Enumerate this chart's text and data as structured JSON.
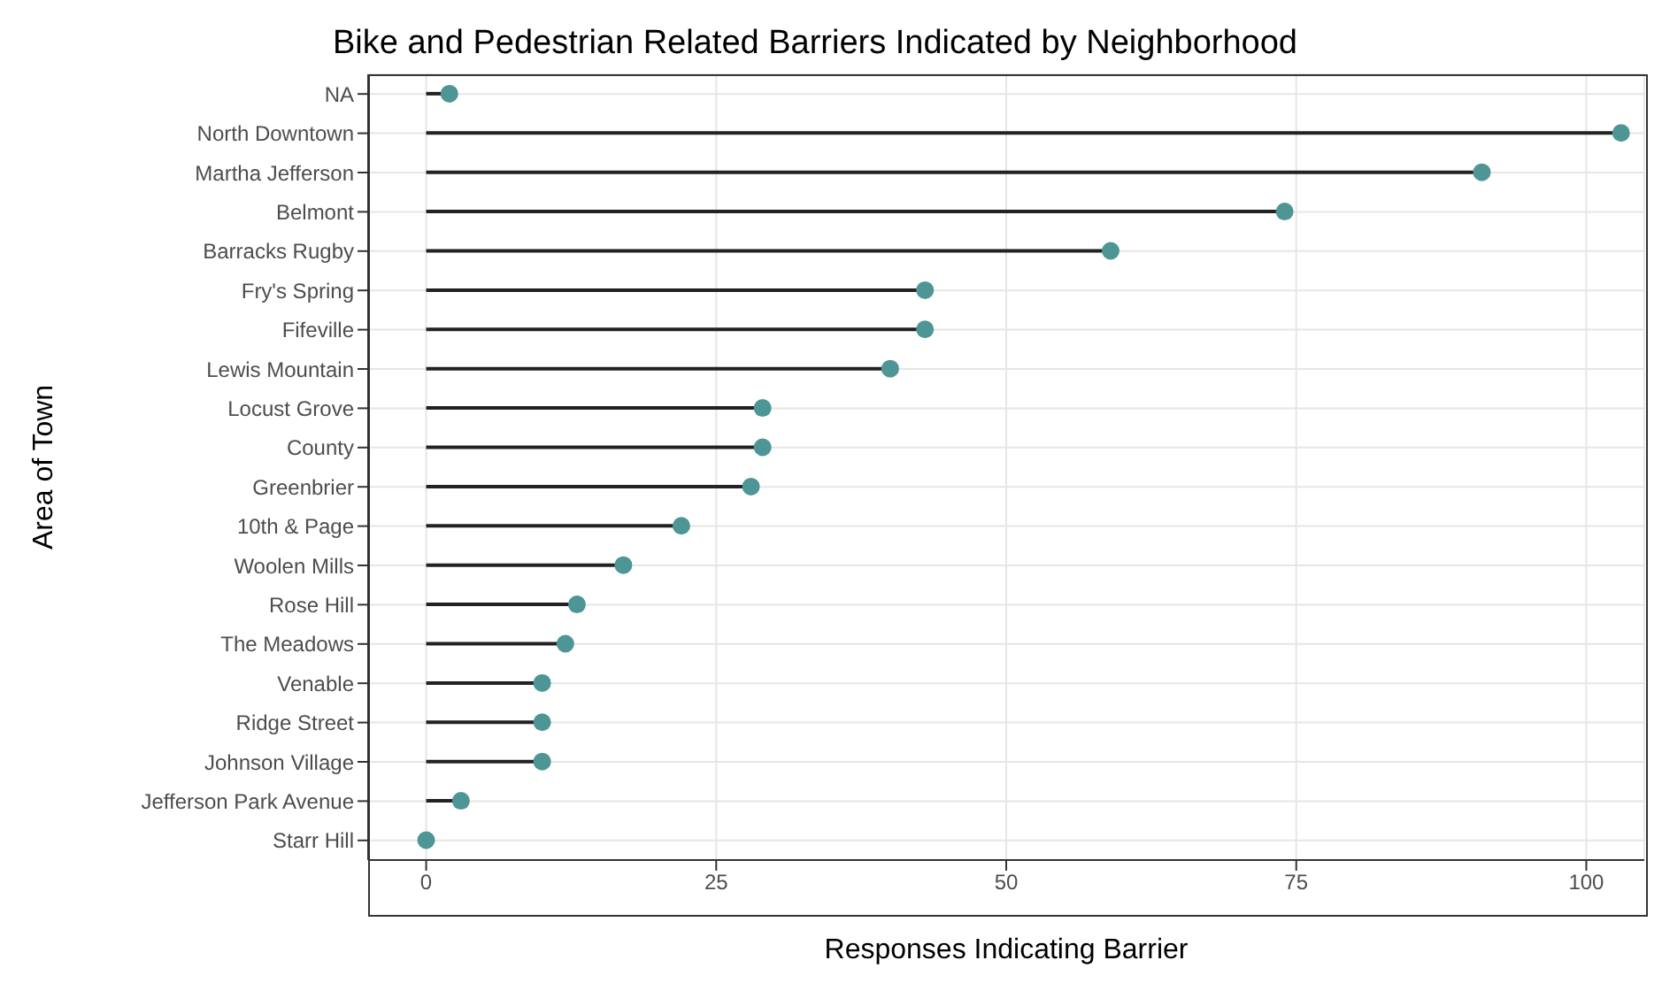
{
  "chart_data": {
    "type": "lollipop",
    "orientation": "horizontal",
    "title": "Bike and Pedestrian Related Barriers Indicated by Neighborhood",
    "xlabel": "Responses Indicating Barrier",
    "ylabel": "Area of Town",
    "categories": [
      "NA",
      "North Downtown",
      "Martha Jefferson",
      "Belmont",
      "Barracks Rugby",
      "Fry's Spring",
      "Fifeville",
      "Lewis Mountain",
      "Locust Grove",
      "County",
      "Greenbrier",
      "10th & Page",
      "Woolen Mills",
      "Rose Hill",
      "The Meadows",
      "Venable",
      "Ridge Street",
      "Johnson Village",
      "Jefferson Park Avenue",
      "Starr Hill"
    ],
    "values": [
      2,
      103,
      91,
      74,
      59,
      43,
      43,
      40,
      29,
      29,
      28,
      22,
      17,
      13,
      12,
      10,
      10,
      10,
      3,
      0
    ],
    "color": "#4e9595",
    "marker": "circle",
    "xlim": [
      -5,
      105
    ],
    "xticks": [
      0,
      25,
      50,
      75,
      100
    ],
    "grid": true
  }
}
